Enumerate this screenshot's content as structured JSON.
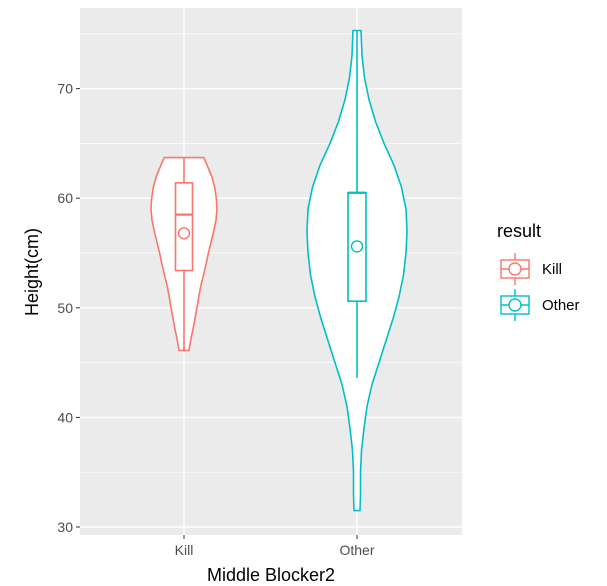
{
  "chart_data": {
    "type": "violin",
    "xlabel": "Middle Blocker2",
    "ylabel": "Height(cm)",
    "categories": [
      "Kill",
      "Other"
    ],
    "ylim": [
      29.5,
      76.5
    ],
    "yticks": [
      30,
      40,
      50,
      60,
      70
    ],
    "grid": true,
    "legend": {
      "title": "result",
      "position": "right",
      "entries": [
        "Kill",
        "Other"
      ]
    },
    "colors": {
      "Kill": "#F8766D",
      "Other": "#00BFC4",
      "panel": "#EBEBEB",
      "grid": "#FFFFFF"
    },
    "series": [
      {
        "name": "Kill",
        "min": 46.1,
        "max": 63.7,
        "q1": 53.4,
        "median": 58.5,
        "q3": 61.4,
        "mean": 56.8,
        "whisker_low": 46.1,
        "whisker_high": 63.7,
        "density": [
          [
            46.1,
            0.15
          ],
          [
            47,
            0.2
          ],
          [
            48,
            0.27
          ],
          [
            49,
            0.33
          ],
          [
            50,
            0.39
          ],
          [
            51,
            0.45
          ],
          [
            52,
            0.51
          ],
          [
            53,
            0.59
          ],
          [
            54,
            0.67
          ],
          [
            55,
            0.74
          ],
          [
            56,
            0.82
          ],
          [
            57,
            0.9
          ],
          [
            58,
            0.97
          ],
          [
            59,
            1.0
          ],
          [
            60,
            0.98
          ],
          [
            61,
            0.93
          ],
          [
            62,
            0.84
          ],
          [
            63,
            0.7
          ],
          [
            63.7,
            0.6
          ]
        ]
      },
      {
        "name": "Other",
        "min": 31.5,
        "max": 75.3,
        "q1": 50.6,
        "median": 60.5,
        "q3": 60.5,
        "mean": 55.6,
        "whisker_low": 43.6,
        "whisker_high": 75.3,
        "density": [
          [
            31.5,
            0.06
          ],
          [
            33,
            0.07
          ],
          [
            35,
            0.07
          ],
          [
            37,
            0.09
          ],
          [
            39,
            0.14
          ],
          [
            41,
            0.2
          ],
          [
            43,
            0.3
          ],
          [
            45,
            0.44
          ],
          [
            47,
            0.58
          ],
          [
            49,
            0.72
          ],
          [
            51,
            0.84
          ],
          [
            53,
            0.93
          ],
          [
            55,
            0.98
          ],
          [
            57,
            1.0
          ],
          [
            59,
            0.98
          ],
          [
            61,
            0.89
          ],
          [
            63,
            0.74
          ],
          [
            65,
            0.54
          ],
          [
            67,
            0.37
          ],
          [
            69,
            0.24
          ],
          [
            71,
            0.15
          ],
          [
            73,
            0.1
          ],
          [
            75.3,
            0.08
          ]
        ]
      }
    ]
  }
}
